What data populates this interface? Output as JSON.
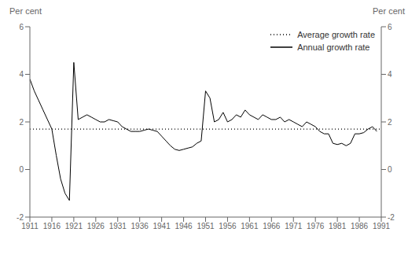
{
  "chart_data": {
    "type": "line",
    "ylabel": "Per cent",
    "y2label": "Per cent",
    "x": [
      1911,
      1912,
      1913,
      1914,
      1915,
      1916,
      1917,
      1918,
      1919,
      1920,
      1921,
      1922,
      1923,
      1924,
      1925,
      1926,
      1927,
      1928,
      1929,
      1930,
      1931,
      1932,
      1933,
      1934,
      1935,
      1936,
      1937,
      1938,
      1939,
      1940,
      1941,
      1942,
      1943,
      1944,
      1945,
      1946,
      1947,
      1948,
      1949,
      1950,
      1951,
      1952,
      1953,
      1954,
      1955,
      1956,
      1957,
      1958,
      1959,
      1960,
      1961,
      1962,
      1963,
      1964,
      1965,
      1966,
      1967,
      1968,
      1969,
      1970,
      1971,
      1972,
      1973,
      1974,
      1975,
      1976,
      1977,
      1978,
      1979,
      1980,
      1981,
      1982,
      1983,
      1984,
      1985,
      1986,
      1987,
      1988,
      1989,
      1990
    ],
    "series": [
      {
        "name": "Annual growth rate",
        "color": "#000000",
        "line_style": "solid",
        "values": [
          3.8,
          3.3,
          2.9,
          2.5,
          2.1,
          1.7,
          0.6,
          -0.4,
          -1.0,
          -1.3,
          4.5,
          2.1,
          2.2,
          2.3,
          2.2,
          2.1,
          2.0,
          2.0,
          2.1,
          2.05,
          2.0,
          1.8,
          1.7,
          1.6,
          1.6,
          1.6,
          1.65,
          1.7,
          1.65,
          1.6,
          1.4,
          1.2,
          1.0,
          0.85,
          0.8,
          0.85,
          0.9,
          0.95,
          1.1,
          1.2,
          3.3,
          3.0,
          2.0,
          2.1,
          2.4,
          2.0,
          2.1,
          2.3,
          2.2,
          2.5,
          2.3,
          2.2,
          2.1,
          2.3,
          2.2,
          2.1,
          2.1,
          2.2,
          2.0,
          2.1,
          2.0,
          1.9,
          1.8,
          2.0,
          1.9,
          1.8,
          1.6,
          1.5,
          1.5,
          1.1,
          1.05,
          1.1,
          1.0,
          1.1,
          1.5,
          1.5,
          1.55,
          1.7,
          1.8,
          1.6
        ]
      }
    ],
    "average": {
      "name": "Average growth rate",
      "value": 1.7,
      "color": "#000000",
      "line_style": "dotted"
    },
    "xlim": [
      1911,
      1991
    ],
    "xticks": [
      1911,
      1916,
      1921,
      1926,
      1931,
      1936,
      1941,
      1946,
      1951,
      1956,
      1961,
      1966,
      1971,
      1976,
      1981,
      1986,
      1991
    ],
    "ylim": [
      -2,
      6
    ],
    "yticks": [
      -2,
      0,
      2,
      4,
      6
    ],
    "y2lim": [
      -2,
      6
    ],
    "y2ticks": [
      -2,
      0,
      2,
      4,
      6
    ],
    "grid": false,
    "legend": "upper right"
  }
}
